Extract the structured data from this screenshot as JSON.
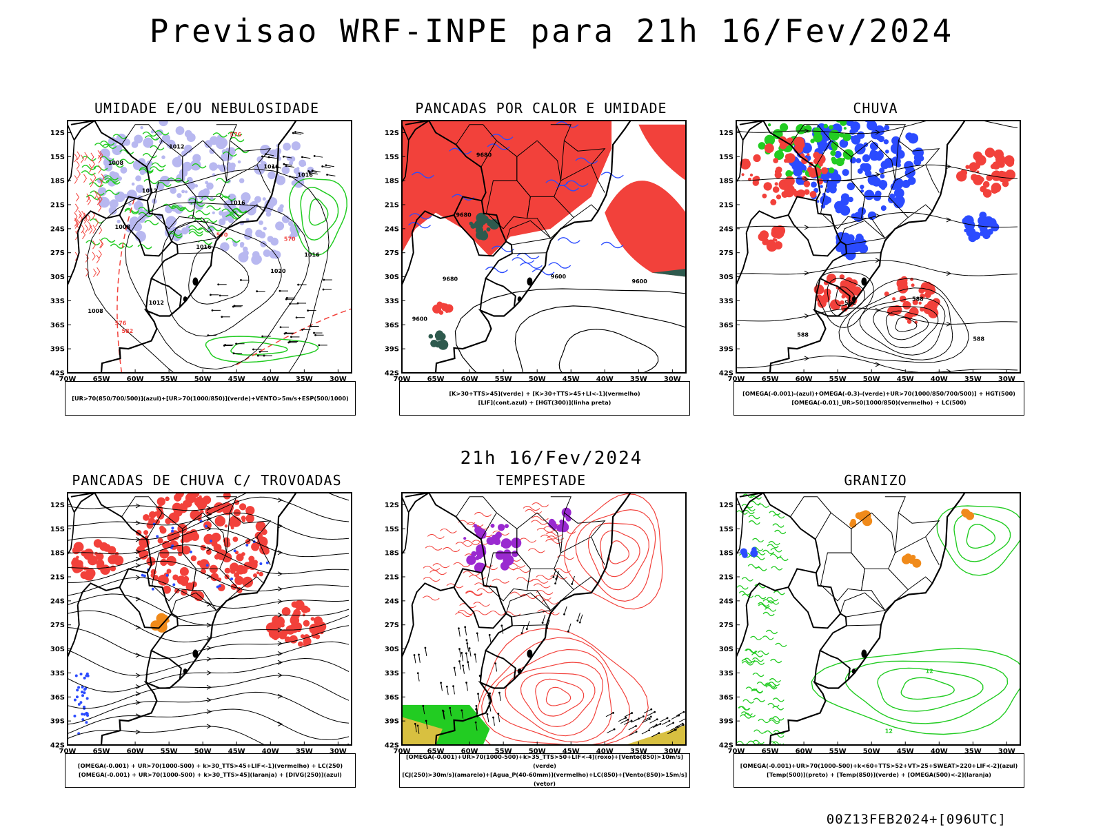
{
  "title": "Previsao WRF-INPE  para 21h 16/Fev/2024",
  "subtitle": "21h 16/Fev/2024",
  "footer": "00Z13FEB2024+[096UTC]",
  "lat_labels": [
    "12S",
    "15S",
    "18S",
    "21S",
    "24S",
    "27S",
    "30S",
    "33S",
    "36S",
    "39S",
    "42S"
  ],
  "lon_labels": [
    "70W",
    "65W",
    "60W",
    "55W",
    "50W",
    "45W",
    "40W",
    "35W",
    "30W"
  ],
  "colors": {
    "red": "#f2413b",
    "green": "#22cc22",
    "blue": "#2b4bff",
    "lavender": "#b8b8f0",
    "darkteal": "#2e5a4e",
    "purple": "#9a2ad0",
    "orange": "#f08a1a",
    "yellow": "#d8c040"
  },
  "panels": [
    {
      "title": "UMIDADE E/OU NEBULOSIDADE",
      "legend": [
        "[UR>70(850/700/500)](azul)+[UR>70(1000/850)](verde)+VENTO>5m/s+ESP(500/1000)"
      ],
      "labels": [
        "1008",
        "1012",
        "1016",
        "1016",
        "1012",
        "1008",
        "1016",
        "1020",
        "1012",
        "1016",
        "1016",
        "1008",
        "576",
        "570",
        "570",
        "576",
        "582"
      ]
    },
    {
      "title": "PANCADAS POR CALOR E UMIDADE",
      "legend": [
        "[K>30+TTS>45](verde) + [K>30+TTS>45+LI<-1](vermelho)",
        "[LIF](cont.azul) + [HGT(300)](linha preta)"
      ],
      "labels": [
        "9680",
        "9680",
        "9680",
        "9600",
        "9600",
        "9600"
      ]
    },
    {
      "title": "CHUVA",
      "legend": [
        "[OMEGA(-0.001)-(azul)+OMEGA(-0.3)-(verde)+UR>70(1000/850/700/500)] + HGT(500)",
        "[OMEGA(-0.01)_UR>50(1000/850)(vermelho) + LC(500)"
      ],
      "labels": [
        "582",
        "588",
        "588",
        "588"
      ]
    },
    {
      "title": "PANCADAS DE CHUVA C/ TROVOADAS",
      "legend": [
        "[OMEGA(-0.001) + UR>70(1000-500) + k>30_TTS>45+LIF<-1](vermelho) + LC(250)",
        "[OMEGA(-0.001) + UR>70(1000-500) + k>30_TTS>45](laranja) + [DIVG(250)](azul)"
      ],
      "labels": []
    },
    {
      "title": "TEMPESTADE",
      "legend": [
        "[OMEGA(-0.001)+UR>70(1000-500)+k>35_TTS>50+LIF<-4](roxo)+[Vento(850)>10m/s](verde)",
        "[CJ(250)>30m/s](amarelo)+[Agua_P(40-60mm)](vermelho)+LC(850)+[Vento(850)>15m/s](vetor)"
      ],
      "labels": []
    },
    {
      "title": "GRANIZO",
      "legend": [
        "[OMEGA(-0.001)+UR>70(1000-500)+k<60+TTS>52+VT>25+SWEAT>220+LIF<-2](azul)",
        "[Temp(500)](preto) + [Temp(850)](verde) + [OMEGA(500)<-2](laranja)"
      ],
      "labels": [
        "12",
        "12"
      ]
    }
  ]
}
